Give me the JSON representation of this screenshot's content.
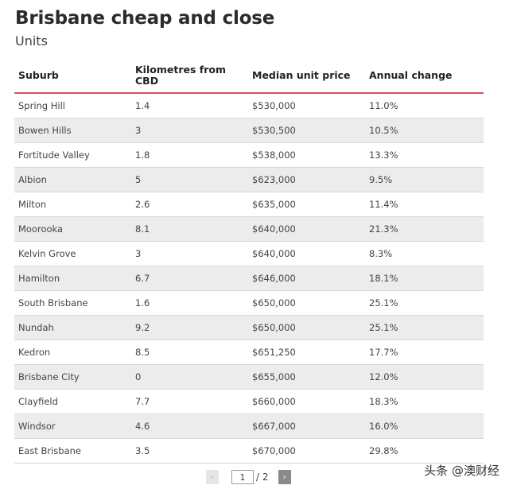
{
  "title": "Brisbane cheap and close",
  "subtitle": "Units",
  "table": {
    "headers": [
      "Suburb",
      "Kilometres from CBD",
      "Median unit price",
      "Annual change"
    ],
    "rows": [
      [
        "Spring Hill",
        "1.4",
        "$530,000",
        "11.0%"
      ],
      [
        "Bowen Hills",
        "3",
        "$530,500",
        "10.5%"
      ],
      [
        "Fortitude Valley",
        "1.8",
        "$538,000",
        "13.3%"
      ],
      [
        "Albion",
        "5",
        "$623,000",
        "9.5%"
      ],
      [
        "Milton",
        "2.6",
        "$635,000",
        "11.4%"
      ],
      [
        "Moorooka",
        "8.1",
        "$640,000",
        "21.3%"
      ],
      [
        "Kelvin Grove",
        "3",
        "$640,000",
        "8.3%"
      ],
      [
        "Hamilton",
        "6.7",
        "$646,000",
        "18.1%"
      ],
      [
        "South Brisbane",
        "1.6",
        "$650,000",
        "25.1%"
      ],
      [
        "Nundah",
        "9.2",
        "$650,000",
        "25.1%"
      ],
      [
        "Kedron",
        "8.5",
        "$651,250",
        "17.7%"
      ],
      [
        "Brisbane City",
        "0",
        "$655,000",
        "12.0%"
      ],
      [
        "Clayfield",
        "7.7",
        "$660,000",
        "18.3%"
      ],
      [
        "Windsor",
        "4.6",
        "$667,000",
        "16.0%"
      ],
      [
        "East Brisbane",
        "3.5",
        "$670,000",
        "29.8%"
      ]
    ]
  },
  "pagination": {
    "prev": "‹",
    "next": "›",
    "current_page": "1",
    "total": "/ 2"
  },
  "watermark": "头条 @澳财经",
  "colors": {
    "header_rule": "#d9534f",
    "row_alt": "#ececec"
  }
}
